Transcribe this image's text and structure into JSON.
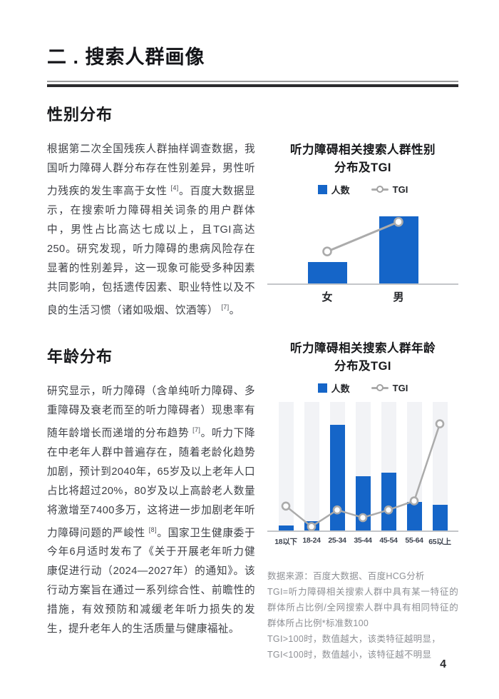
{
  "header": {
    "title": "二 . 搜索人群画像"
  },
  "page": {
    "number": "4"
  },
  "sections": {
    "gender": {
      "heading": "性别分布",
      "paragraph": [
        {
          "t": "根据第二次全国残疾人群抽样调查数据，我国听力障碍人群分布存在性别差异，男性听力残疾的发生率高于女性 "
        },
        {
          "sup": "[4]"
        },
        {
          "t": "。百度大数据显示，在搜索听力障碍相关词条的用户群体中，男性占比高达七成以上，且TGI高达250。研究发现，听力障碍的患病风险存在显著的性别差异，这一现象可能受多种因素共同影响，包括遗传因素、职业特性以及不良的生活习惯（诸如吸烟、饮酒等） "
        },
        {
          "sup": "[7]"
        },
        {
          "t": "。"
        }
      ]
    },
    "age": {
      "heading": "年龄分布",
      "paragraph": [
        {
          "t": "研究显示，听力障碍（含单纯听力障碍、多重障碍及衰老而至的听力障碍者）现患率有随年龄增长而递增的分布趋势 "
        },
        {
          "sup": "[7]"
        },
        {
          "t": "。听力下降在中老年人群中普遍存在，随着老龄化趋势加剧，预计到2040年，65岁及以上老年人口占比将超过20%，80岁及以上高龄老人数量将激增至7400多万，这将进一步加剧老年听力障碍问题的严峻性 "
        },
        {
          "sup": "[8]"
        },
        {
          "t": "。国家卫生健康委于今年6月适时发布了《关于开展老年听力健康促进行动（2024—2027年）的通知》。该行动方案旨在通过一系列综合性、前瞻性的措施，有效预防和减缓老年听力损失的发生，提升老年人的生活质量与健康福祉。"
        }
      ]
    }
  },
  "chart_data": [
    {
      "id": "gender-tgi",
      "type": "bar+line",
      "title": "听力障碍相关搜索人群性别分布及TGI",
      "title_lines": [
        "听力障碍相关搜索人群性别",
        "分布及TGI"
      ],
      "categories": [
        "女",
        "男"
      ],
      "series": [
        {
          "name": "人数",
          "type": "bar",
          "values_pct": [
            27,
            84
          ]
        },
        {
          "name": "TGI",
          "type": "line",
          "values_pct": [
            40,
            77
          ]
        }
      ],
      "legend_position": "top-center",
      "grid": false,
      "value_axis_shown": false,
      "note": "no numeric axis shown; values estimated as % of plot height"
    },
    {
      "id": "age-tgi",
      "type": "bar+line",
      "title": "听力障碍相关搜索人群年龄分布及TGI",
      "title_lines": [
        "听力障碍相关搜索人群年龄",
        "分布及TGI"
      ],
      "categories": [
        "18以下",
        "18-24",
        "25-34",
        "35-44",
        "45-54",
        "55-64",
        "65以上"
      ],
      "series": [
        {
          "name": "人数",
          "type": "bar",
          "values_pct": [
            4,
            7,
            82,
            42,
            45,
            22,
            20
          ]
        },
        {
          "name": "TGI",
          "type": "line",
          "values_pct": [
            19,
            3,
            16,
            10,
            16,
            23,
            83
          ]
        }
      ],
      "legend_position": "top-center",
      "grid": false,
      "value_axis_shown": false,
      "background_columns": true,
      "note": "no numeric axis shown; values estimated as % of plot height"
    }
  ],
  "footer_notes": [
    "数据来源：百度大数据、百度HCG分析",
    "TGI=听力障碍相关搜索人群中具有某一特征的群体所占比例/全网搜索人群中具有相同特征的群体所占比例*标准数100",
    "TGI>100时，数值越大，该类特征越明显，",
    "TGI<100时，数值越小，该特征越不明显"
  ],
  "colors": {
    "bar_blue": "#1565c8",
    "tgi_line_gray": "#ababab",
    "background_column": "#f2f3f6",
    "heading_black": "#17181b",
    "body_text": "#3e4046",
    "note_gray": "#8e9095"
  }
}
